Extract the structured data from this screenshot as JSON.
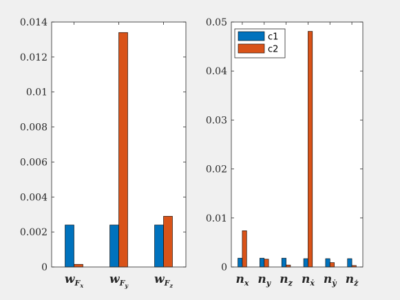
{
  "chart_data": [
    {
      "type": "bar",
      "categories": [
        "w_{F_x}",
        "w_{F_y}",
        "w_{F_z}"
      ],
      "category_labels": [
        {
          "base": "w",
          "sub": "F",
          "subsub": "x"
        },
        {
          "base": "w",
          "sub": "F",
          "subsub": "y"
        },
        {
          "base": "w",
          "sub": "F",
          "subsub": "z"
        }
      ],
      "series": [
        {
          "values": [
            0.0024,
            0.0024,
            0.0024
          ],
          "color": "#0072bd"
        },
        {
          "values": [
            0.00015,
            0.0134,
            0.0029
          ],
          "color": "#d95319"
        }
      ],
      "ylim": [
        0,
        0.014
      ],
      "yticks": [
        0,
        0.002,
        0.004,
        0.006,
        0.008,
        0.01,
        0.012,
        0.014
      ],
      "ytick_labels": [
        "0",
        "0.002",
        "0.004",
        "0.006",
        "0.008",
        "0.01",
        "0.012",
        "0.014"
      ],
      "grid": false
    },
    {
      "type": "bar",
      "categories": [
        "n_x",
        "n_y",
        "n_z",
        "n_ẋ",
        "n_ẏ",
        "n_ż"
      ],
      "category_labels": [
        {
          "base": "n",
          "sub": "x"
        },
        {
          "base": "n",
          "sub": "y"
        },
        {
          "base": "n",
          "sub": "z"
        },
        {
          "base": "n",
          "sub": "ẋ"
        },
        {
          "base": "n",
          "sub": "ẏ"
        },
        {
          "base": "n",
          "sub": "ż"
        }
      ],
      "series": [
        {
          "name": "c1",
          "values": [
            0.0018,
            0.0018,
            0.0018,
            0.0017,
            0.0017,
            0.0017
          ],
          "color": "#0072bd"
        },
        {
          "name": "c2",
          "values": [
            0.0074,
            0.0016,
            0.0004,
            0.0481,
            0.0009,
            0.0003
          ],
          "color": "#d95319"
        }
      ],
      "ylim": [
        0,
        0.05
      ],
      "yticks": [
        0,
        0.01,
        0.02,
        0.03,
        0.04,
        0.05
      ],
      "ytick_labels": [
        "0",
        "0.01",
        "0.02",
        "0.03",
        "0.04",
        "0.05"
      ],
      "legend": "top-left",
      "grid": false
    }
  ]
}
